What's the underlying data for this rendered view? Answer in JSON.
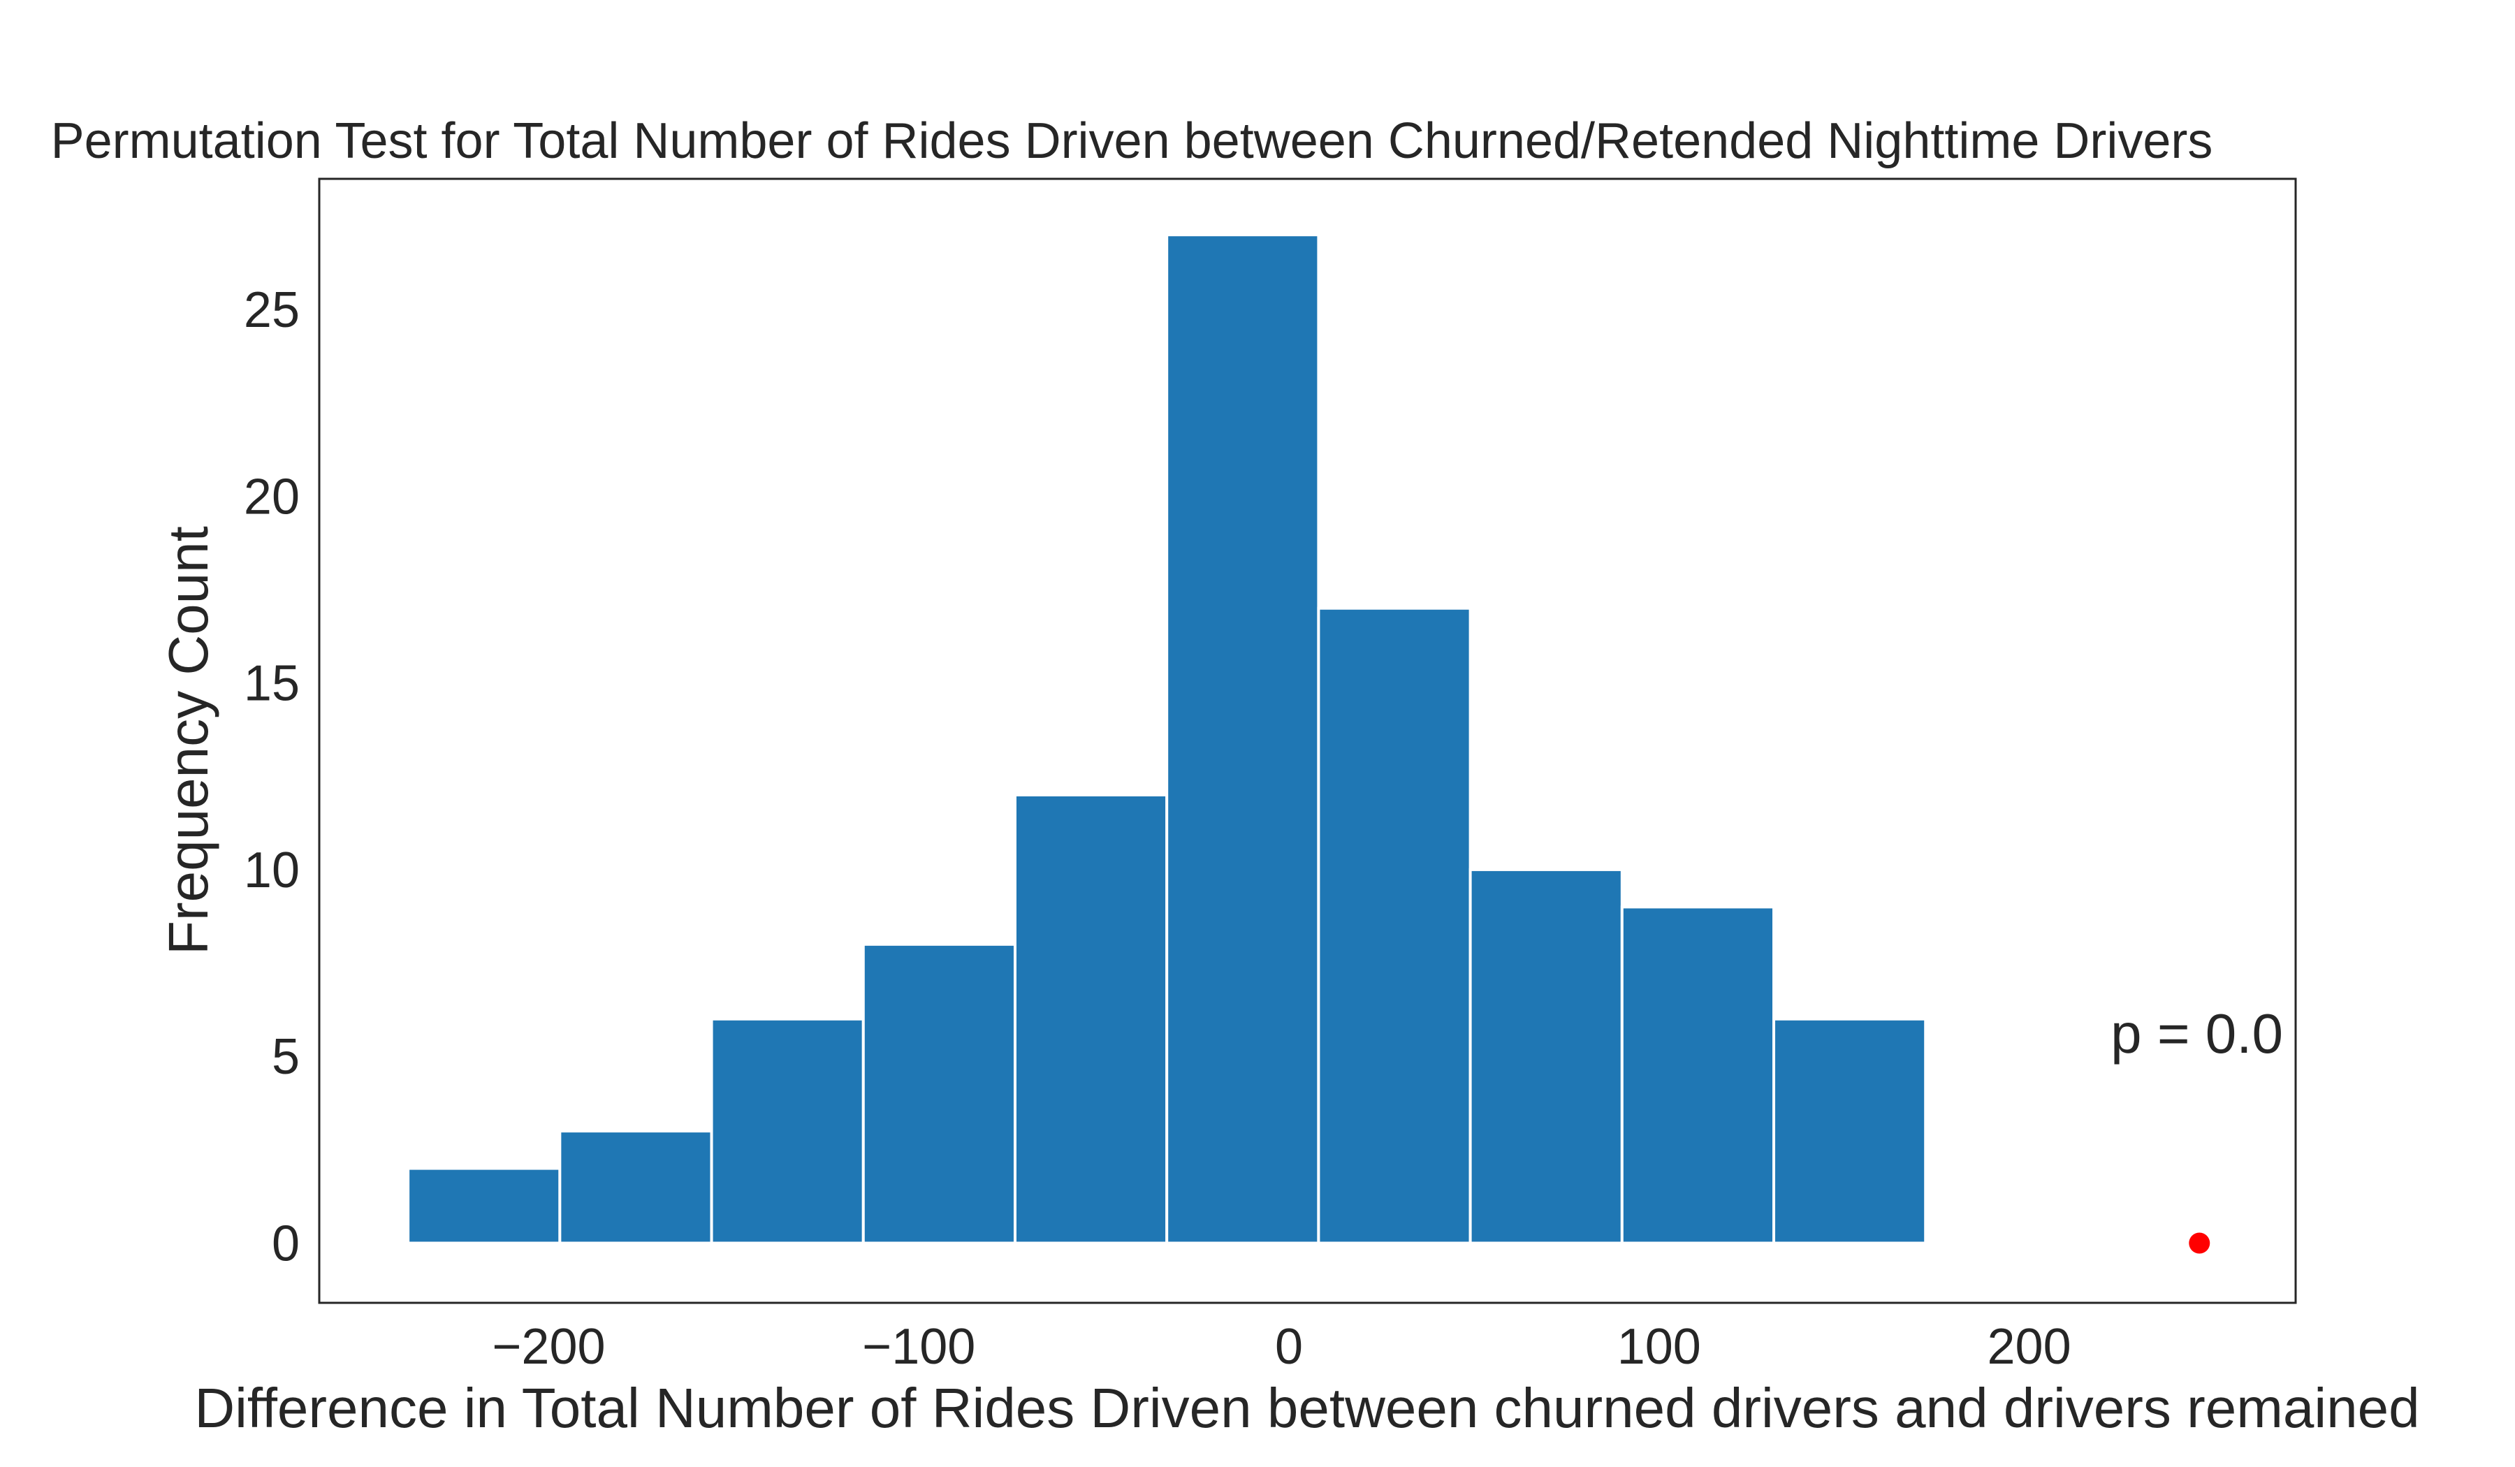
{
  "chart_data": {
    "type": "bar",
    "title": "Permutation Test for Total Number of Rides Driven between Churned/Retended Nighttime Drivers",
    "xlabel": "Difference in Total Number of Rides Driven between churned drivers and drivers remained",
    "ylabel": "Frequency Count",
    "xlim": [
      -262,
      272
    ],
    "ylim": [
      -1.6,
      28.5
    ],
    "xticks": [
      -200,
      -100,
      0,
      100,
      200
    ],
    "xtick_labels": [
      "−200",
      "−100",
      "0",
      "100",
      "200"
    ],
    "yticks": [
      0,
      5,
      10,
      15,
      20,
      25
    ],
    "ytick_labels": [
      "0",
      "5",
      "10",
      "15",
      "20",
      "25"
    ],
    "grid": false,
    "bin_edges": [
      -238,
      -197,
      -156,
      -115,
      -74,
      -33,
      8,
      49,
      90,
      131,
      172
    ],
    "values": [
      2,
      3,
      6,
      8,
      12,
      27,
      17,
      10,
      9,
      6
    ],
    "bar_color": "#1f77b4",
    "observed_point": {
      "x": 246,
      "y": 0,
      "color": "#ff0000"
    },
    "annotation": {
      "text": "p = 0.0",
      "x": 222,
      "y": 5.1
    }
  }
}
